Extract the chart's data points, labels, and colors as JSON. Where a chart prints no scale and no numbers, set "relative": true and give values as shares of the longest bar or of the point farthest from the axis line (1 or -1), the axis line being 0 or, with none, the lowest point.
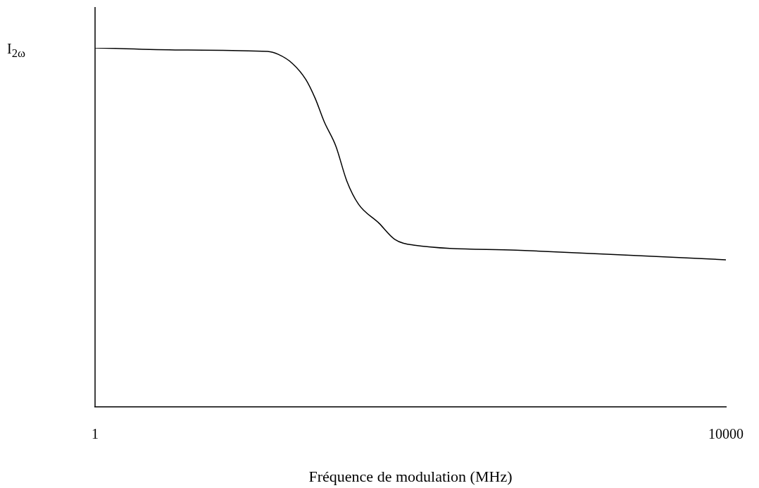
{
  "chart_data": {
    "type": "line",
    "xlabel": "Fréquence de modulation (MHz)",
    "ylabel": "I$_{2ω}$",
    "relative": true,
    "log": "x",
    "xlim": [
      1,
      10000
    ],
    "xticks": [
      1,
      10000
    ],
    "grid": false,
    "legend": false,
    "series": [
      {
        "color": "#000000",
        "x": [
          1,
          3.85,
          12.4,
          14.5,
          17.8,
          21.7,
          24.9,
          28.4,
          33.6,
          39.5,
          46.8,
          63.1,
          79.4,
          104,
          466,
          2083,
          10000
        ],
        "values": [
          1,
          0.994,
          0.99,
          0.982,
          0.957,
          0.912,
          0.859,
          0.794,
          0.727,
          0.629,
          0.565,
          0.512,
          0.467,
          0.451,
          0.437,
          0.424,
          0.41
        ]
      }
    ]
  }
}
